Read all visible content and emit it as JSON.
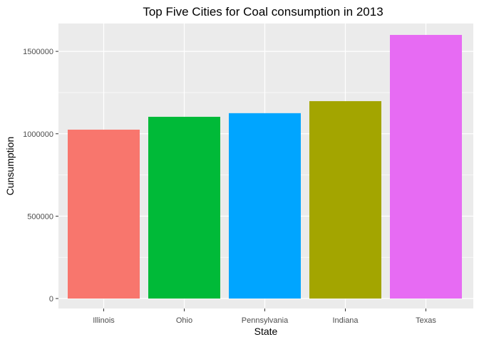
{
  "chart_data": {
    "type": "bar",
    "title": "Top Five Cities for Coal consumption in 2013",
    "xlabel": "State",
    "ylabel": "Cunsumption",
    "categories": [
      "Illinois",
      "Ohio",
      "Pennsylvania",
      "Indiana",
      "Texas"
    ],
    "values": [
      1025000,
      1103000,
      1125000,
      1198000,
      1600000
    ],
    "colors": [
      "#F8766D",
      "#00BA38",
      "#00A5FF",
      "#A3A500",
      "#E76BF3"
    ],
    "ylim": [
      0,
      1600000
    ],
    "yticks": [
      0,
      500000,
      1000000,
      1500000
    ],
    "ytick_labels": [
      "0",
      "500000",
      "1000000",
      "1500000"
    ],
    "grid": true,
    "legend": "none",
    "panel_background": "#EBEBEB",
    "grid_color": "#FFFFFF"
  }
}
